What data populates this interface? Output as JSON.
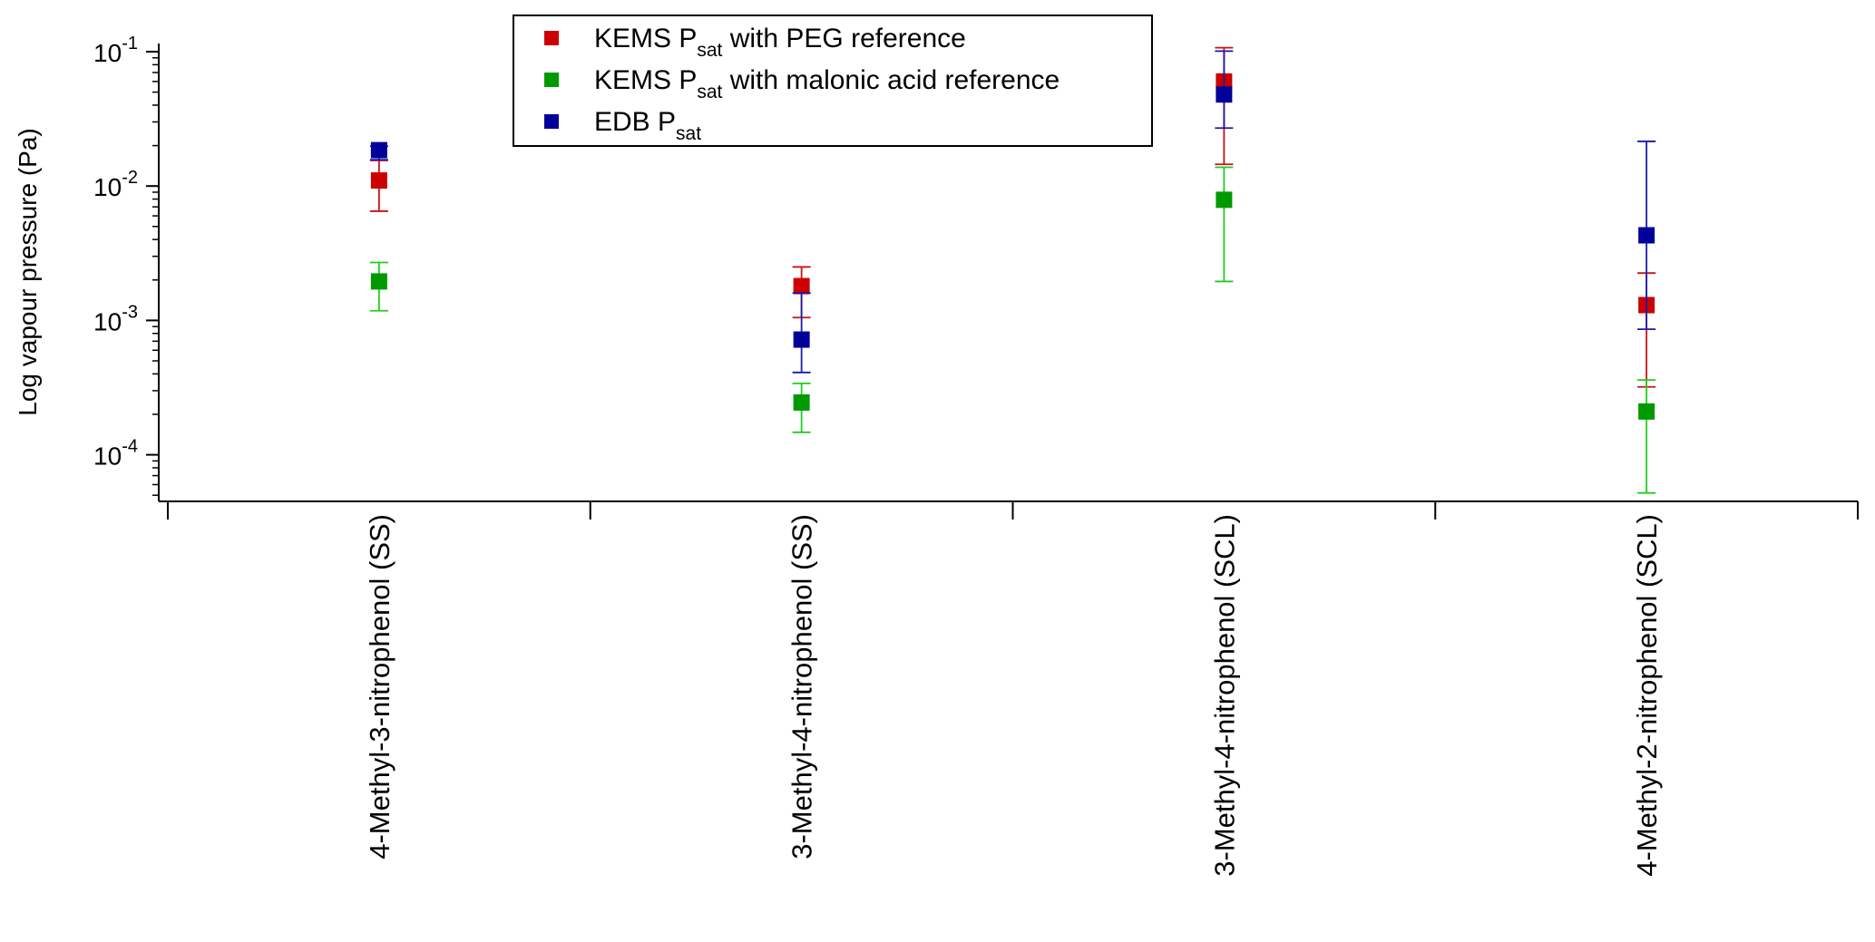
{
  "chart_data": {
    "type": "scatter",
    "ylabel": "Log vapour pressure (Pa)",
    "yscale": "log",
    "ylim": [
      4.5e-05,
      0.115
    ],
    "y_ticks": [
      {
        "value": 0.1,
        "base": "10",
        "exp": "-1"
      },
      {
        "value": 0.01,
        "base": "10",
        "exp": "-2"
      },
      {
        "value": 0.001,
        "base": "10",
        "exp": "-3"
      },
      {
        "value": 0.0001,
        "base": "10",
        "exp": "-4"
      }
    ],
    "categories": [
      "4-Methyl-3-nitrophenol (SS)",
      "3-Methyl-4-nitrophenol (SS)",
      "3-Methyl-4-nitrophenol (SCL)",
      "4-Methyl-2-nitrophenol (SCL)"
    ],
    "grid": false,
    "legend_position": "top-center",
    "series": [
      {
        "key": "peg",
        "legend": {
          "prefix": "KEMS P",
          "sub": "sat",
          "suffix": " with PEG reference"
        },
        "color": "#cc0000",
        "bar_color": "#cc1111",
        "values": [
          0.011,
          0.0018,
          0.06,
          0.0013
        ],
        "err_low": [
          0.0065,
          0.00105,
          0.0145,
          0.00032
        ],
        "err_high": [
          0.0155,
          0.0025,
          0.107,
          0.00225
        ]
      },
      {
        "key": "malonic",
        "legend": {
          "prefix": "KEMS P",
          "sub": "sat",
          "suffix": "  with malonic acid reference"
        },
        "color": "#009900",
        "bar_color": "#22cc22",
        "values": [
          0.00195,
          0.000245,
          0.0079,
          0.00021
        ],
        "err_low": [
          0.00118,
          0.000147,
          0.00195,
          5.2e-05
        ],
        "err_high": [
          0.0027,
          0.00034,
          0.0138,
          0.00036
        ]
      },
      {
        "key": "edb",
        "legend": {
          "prefix": "EDB P",
          "sub": "sat",
          "suffix": ""
        },
        "color": "#000099",
        "bar_color": "#1a1aaa",
        "values": [
          0.0185,
          0.00072,
          0.048,
          0.0043
        ],
        "err_low": [
          0.0157,
          0.00041,
          0.027,
          0.00086
        ],
        "err_high": [
          0.0198,
          0.0016,
          0.101,
          0.0215
        ]
      }
    ]
  }
}
